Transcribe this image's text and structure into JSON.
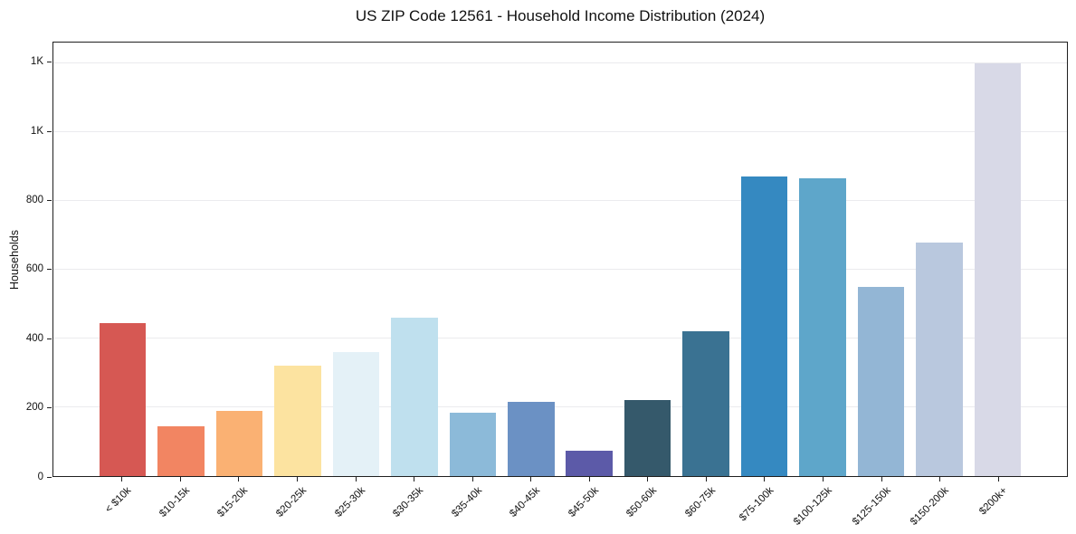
{
  "title": "US ZIP Code 12561 - Household Income Distribution (2024)",
  "chart_data": {
    "type": "bar",
    "title": "US ZIP Code 12561 - Household Income Distribution (2024)",
    "xlabel": "",
    "ylabel": "Households",
    "ylim": [
      0,
      1260
    ],
    "grid": "horizontal",
    "legend": "none",
    "categories": [
      "< $10k",
      "$10-15k",
      "$15-20k",
      "$20-25k",
      "$25-30k",
      "$30-35k",
      "$35-40k",
      "$40-45k",
      "$45-50k",
      "$50-60k",
      "$60-75k",
      "$75-100k",
      "$100-125k",
      "$125-150k",
      "$150-200k",
      "$200k+"
    ],
    "values": [
      445,
      145,
      190,
      320,
      360,
      460,
      185,
      215,
      75,
      220,
      420,
      870,
      865,
      550,
      680,
      1200
    ],
    "bar_colors": [
      "#d65853",
      "#f28562",
      "#fab173",
      "#fce3a0",
      "#e4f1f7",
      "#bfe0ee",
      "#8cbad9",
      "#6b91c4",
      "#5c5aa8",
      "#35596b",
      "#3a7292",
      "#3589c1",
      "#5ea6ca",
      "#93b6d5",
      "#b9c8de",
      "#d8d9e7"
    ],
    "y_ticks": [
      {
        "value": 0,
        "label": "0"
      },
      {
        "value": 200,
        "label": "200"
      },
      {
        "value": 400,
        "label": "400"
      },
      {
        "value": 600,
        "label": "600"
      },
      {
        "value": 800,
        "label": "800"
      },
      {
        "value": 1000,
        "label": "1K"
      },
      {
        "value": 1200,
        "label": "1K"
      }
    ],
    "colors": {
      "spine": "#1f1f1f",
      "gridline": "#ebebee",
      "background": "#ffffff",
      "text": "#111111"
    }
  }
}
